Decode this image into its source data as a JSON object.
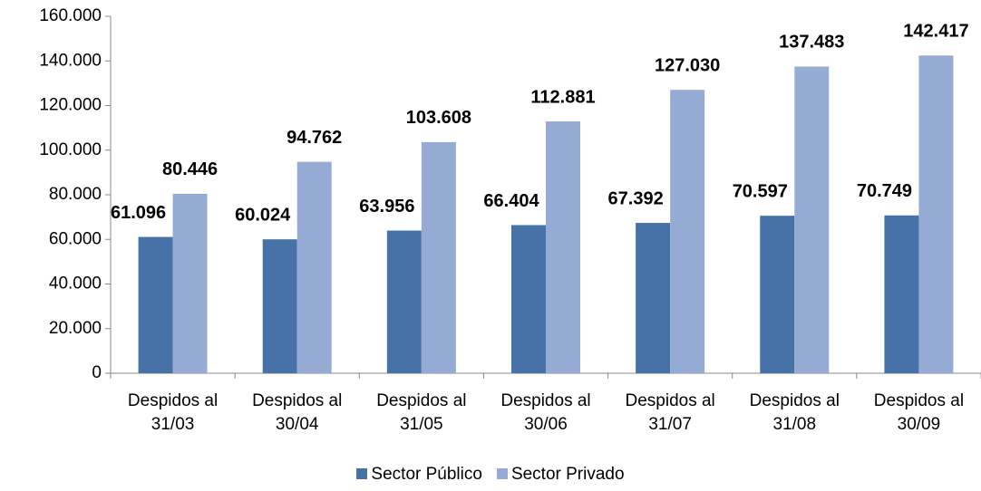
{
  "chart_data": {
    "type": "bar",
    "categories": [
      "Despidos al 31/03",
      "Despidos al 30/04",
      "Despidos al 31/05",
      "Despidos al 30/06",
      "Despidos al 31/07",
      "Despidos al 31/08",
      "Despidos al 30/09"
    ],
    "series": [
      {
        "name": "Sector Público",
        "color": "#4672a8",
        "values": [
          61096,
          60024,
          63956,
          66404,
          67392,
          70597,
          70749
        ],
        "value_labels": [
          "61.096",
          "60.024",
          "63.956",
          "66.404",
          "67.392",
          "70.597",
          "70.749"
        ]
      },
      {
        "name": "Sector Privado",
        "color": "#95abd4",
        "values": [
          80446,
          94762,
          103608,
          112881,
          127030,
          137483,
          142417
        ],
        "value_labels": [
          "80.446",
          "94.762",
          "103.608",
          "112.881",
          "127.030",
          "137.483",
          "142.417"
        ]
      }
    ],
    "ylim": [
      0,
      160000
    ],
    "yticks": [
      0,
      {
        "value": 20000,
        "label": "20.000"
      },
      {
        "value": 40000,
        "label": "40.000"
      },
      {
        "value": 60000,
        "label": "60.000"
      },
      {
        "value": 80000,
        "label": "80.000"
      },
      {
        "value": 100000,
        "label": "100.000"
      },
      {
        "value": 120000,
        "label": "120.000"
      },
      {
        "value": 140000,
        "label": "140.000"
      },
      {
        "value": 160000,
        "label": "160.000"
      }
    ],
    "legend": "bottom"
  }
}
